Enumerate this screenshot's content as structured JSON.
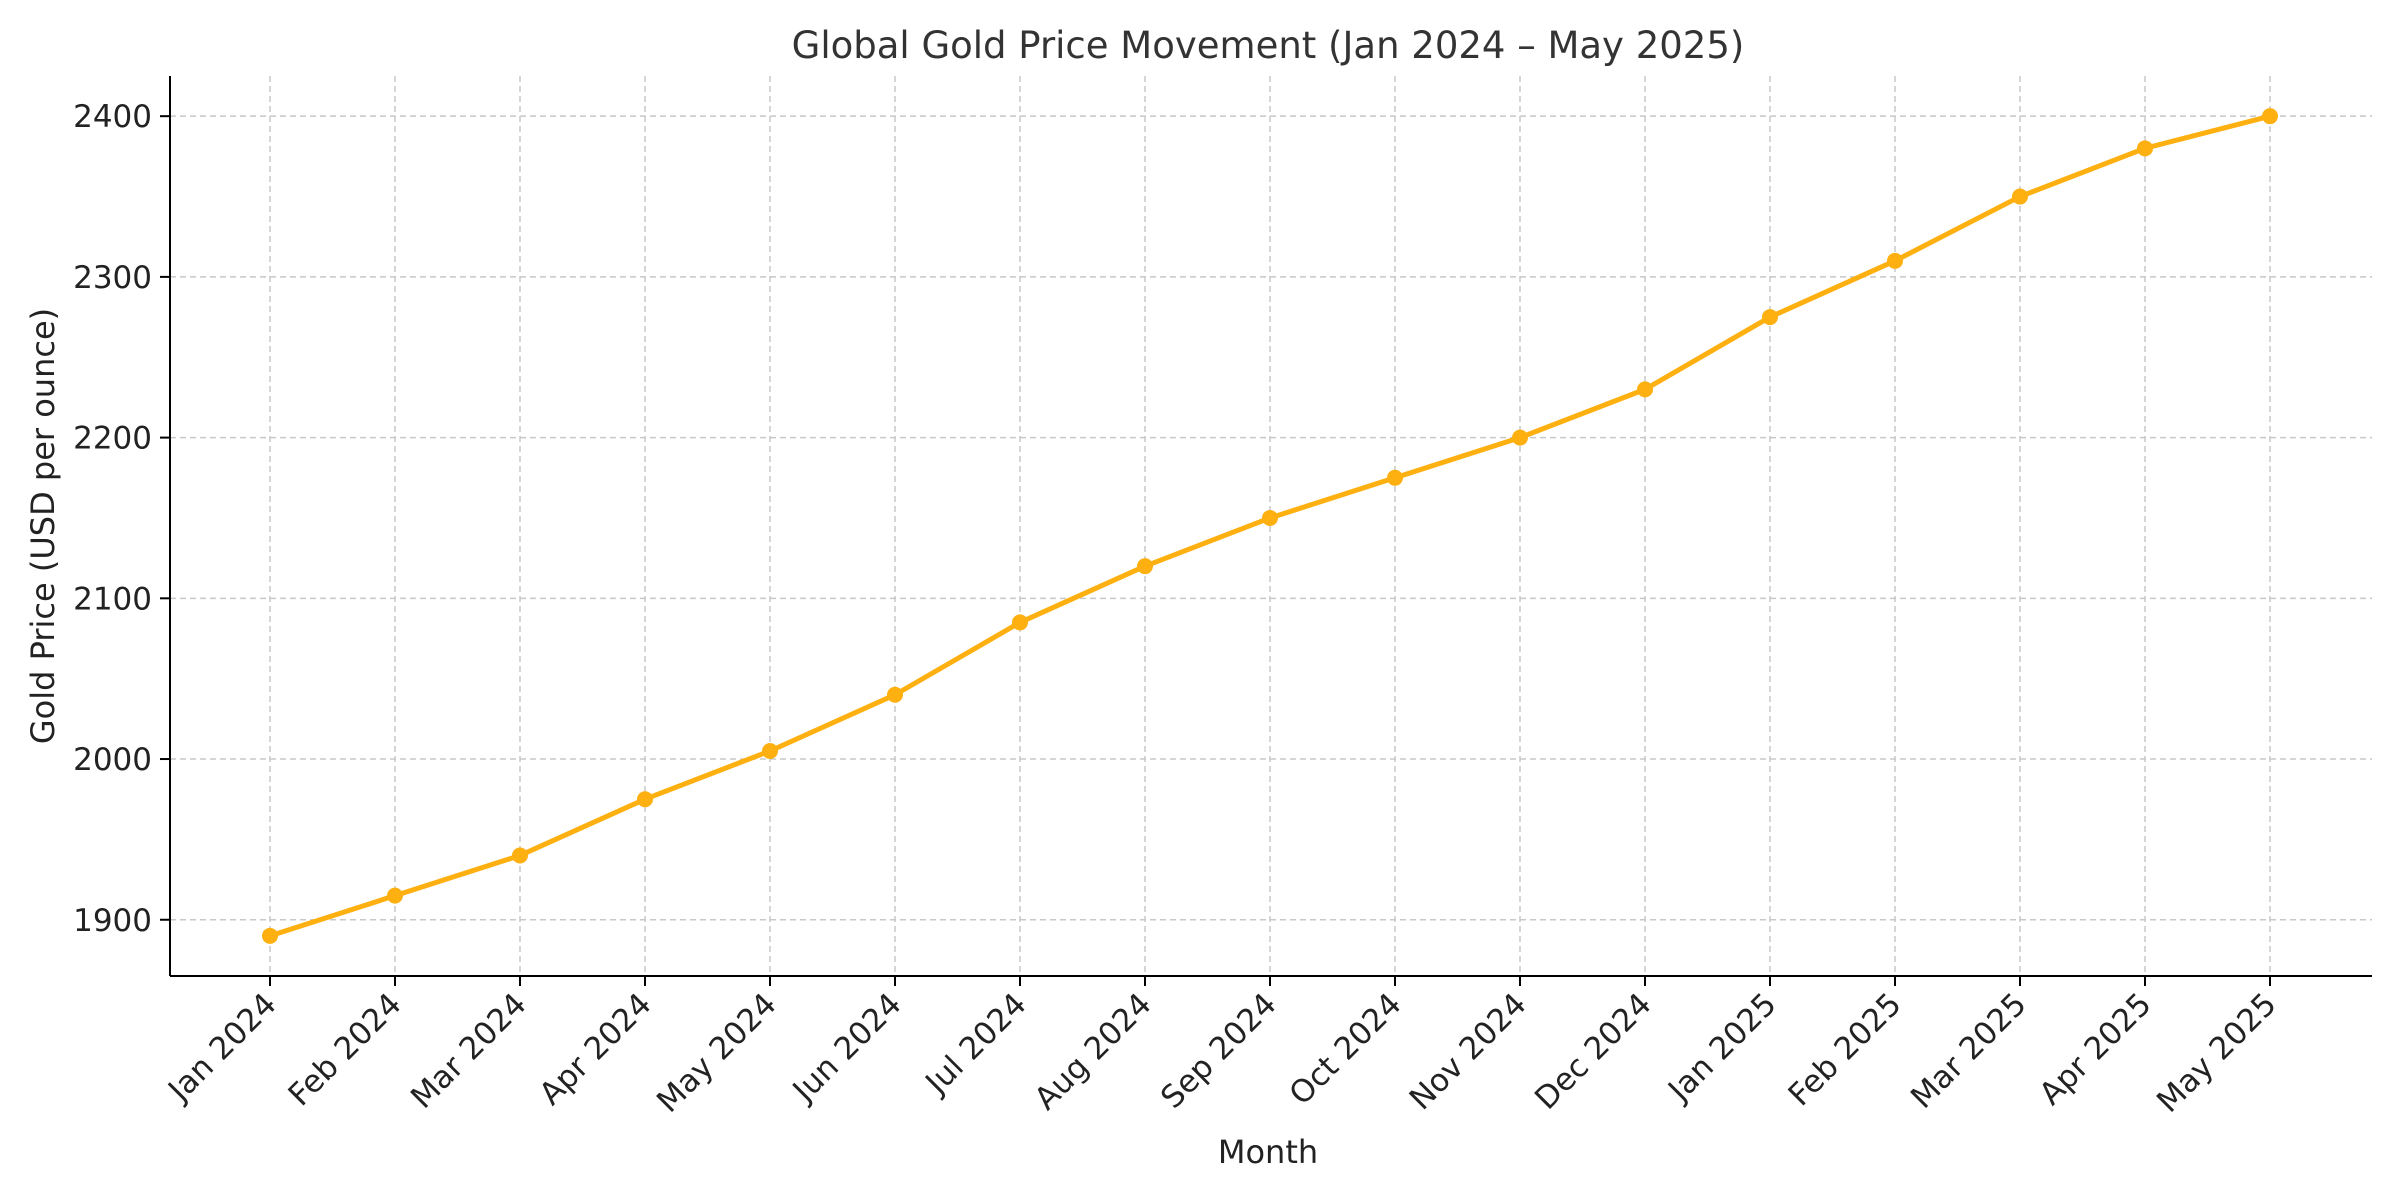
{
  "chart_data": {
    "type": "line",
    "title": "Global Gold Price Movement (Jan 2024 – May 2025)",
    "xlabel": "Month",
    "ylabel": "Gold Price (USD per ounce)",
    "categories": [
      "Jan 2024",
      "Feb 2024",
      "Mar 2024",
      "Apr 2024",
      "May 2024",
      "Jun 2024",
      "Jul 2024",
      "Aug 2024",
      "Sep 2024",
      "Oct 2024",
      "Nov 2024",
      "Dec 2024",
      "Jan 2025",
      "Feb 2025",
      "Mar 2025",
      "Apr 2025",
      "May 2025"
    ],
    "series": [
      {
        "values": [
          1890,
          1915,
          1940,
          1975,
          2005,
          2040,
          2085,
          2120,
          2150,
          2175,
          2200,
          2230,
          2275,
          2310,
          2350,
          2380,
          2400
        ],
        "color": "#FDB010"
      }
    ],
    "yticks": [
      1900,
      2000,
      2100,
      2200,
      2300,
      2400
    ],
    "ylim": [
      1865,
      2425
    ],
    "grid": true,
    "grid_style": "dashed",
    "legend": "none"
  }
}
